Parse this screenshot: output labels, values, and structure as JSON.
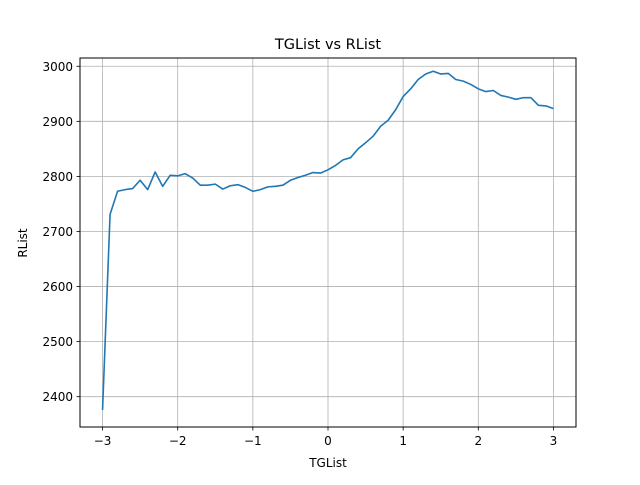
{
  "chart_data": {
    "type": "line",
    "title": "TGList vs RList",
    "xlabel": "TGList",
    "ylabel": "RList",
    "xlim": [
      -3.3,
      3.3
    ],
    "ylim": [
      2345,
      3015
    ],
    "grid": true,
    "xticks": [
      -3,
      -2,
      -1,
      0,
      1,
      2,
      3
    ],
    "yticks": [
      2400,
      2500,
      2600,
      2700,
      2800,
      2900,
      3000
    ],
    "xtick_labels": [
      "−3",
      "−2",
      "−1",
      "0",
      "1",
      "2",
      "3"
    ],
    "ytick_labels": [
      "2400",
      "2500",
      "2600",
      "2700",
      "2800",
      "2900",
      "3000"
    ],
    "series": [
      {
        "color": "#1f77b4",
        "x": [
          -3.0,
          -2.9,
          -2.8,
          -2.7,
          -2.6,
          -2.5,
          -2.4,
          -2.3,
          -2.2,
          -2.1,
          -2.0,
          -1.9,
          -1.8,
          -1.7,
          -1.6,
          -1.5,
          -1.4,
          -1.3,
          -1.2,
          -1.1,
          -1.0,
          -0.9,
          -0.8,
          -0.7,
          -0.6,
          -0.5,
          -0.4,
          -0.3,
          -0.2,
          -0.1,
          0.0,
          0.1,
          0.2,
          0.3,
          0.4,
          0.5,
          0.6,
          0.7,
          0.8,
          0.9,
          1.0,
          1.1,
          1.2,
          1.3,
          1.4,
          1.5,
          1.6,
          1.7,
          1.8,
          1.9,
          2.0,
          2.1,
          2.2,
          2.3,
          2.4,
          2.5,
          2.6,
          2.7,
          2.8,
          2.9,
          3.0
        ],
        "y": [
          2376,
          2731,
          2773,
          2776,
          2778,
          2793,
          2776,
          2808,
          2782,
          2802,
          2801,
          2805,
          2797,
          2784,
          2784,
          2786,
          2777,
          2783,
          2785,
          2780,
          2773,
          2776,
          2781,
          2782,
          2784,
          2793,
          2798,
          2802,
          2807,
          2806,
          2812,
          2820,
          2830,
          2834,
          2850,
          2861,
          2873,
          2891,
          2902,
          2921,
          2945,
          2959,
          2976,
          2986,
          2991,
          2986,
          2987,
          2976,
          2973,
          2967,
          2959,
          2954,
          2956,
          2947,
          2944,
          2940,
          2943,
          2943,
          2929,
          2928,
          2923
        ]
      }
    ]
  }
}
